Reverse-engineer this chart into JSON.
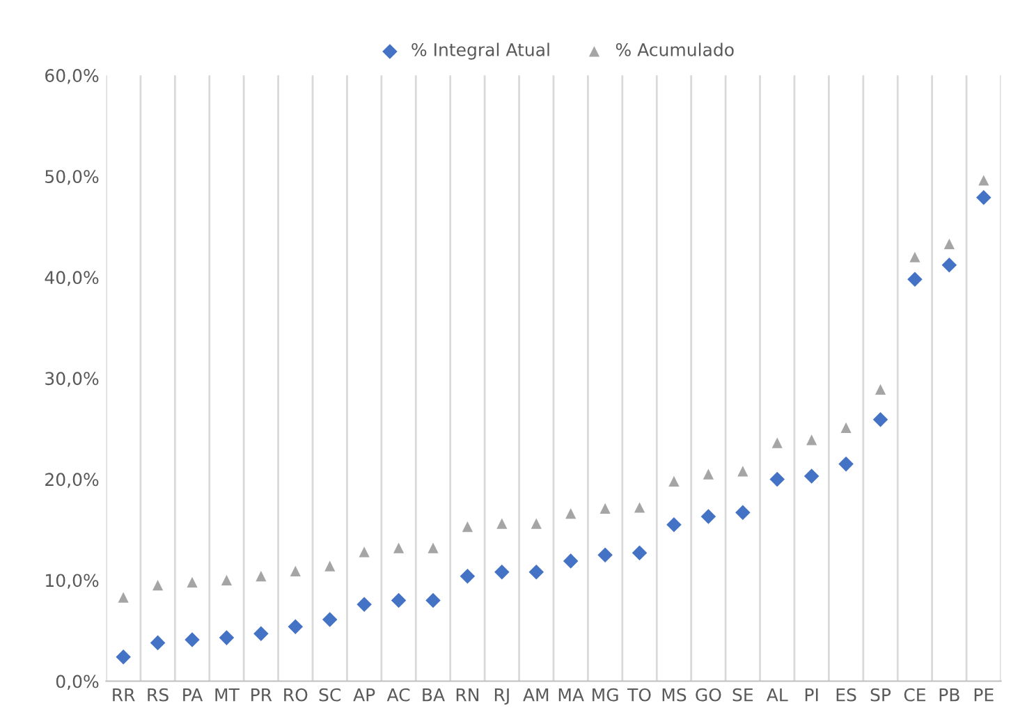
{
  "chart_data": {
    "type": "scatter",
    "categories": [
      "RR",
      "RS",
      "PA",
      "MT",
      "PR",
      "RO",
      "SC",
      "AP",
      "AC",
      "BA",
      "RN",
      "RJ",
      "AM",
      "MA",
      "MG",
      "TO",
      "MS",
      "GO",
      "SE",
      "AL",
      "PI",
      "ES",
      "SP",
      "CE",
      "PB",
      "PE"
    ],
    "series": [
      {
        "name": "% Integral Atual",
        "color": "#4472c4",
        "marker": "diamond",
        "values": [
          2.4,
          3.8,
          4.1,
          4.3,
          4.7,
          5.4,
          6.1,
          7.6,
          8.0,
          8.0,
          10.4,
          10.8,
          10.8,
          11.9,
          12.5,
          12.7,
          15.5,
          16.3,
          16.7,
          20.0,
          20.3,
          21.5,
          25.9,
          39.8,
          41.2,
          47.9
        ]
      },
      {
        "name": "% Acumulado",
        "color": "#a5a5a5",
        "marker": "triangle",
        "values": [
          8.3,
          9.5,
          9.8,
          10.0,
          10.4,
          10.9,
          11.4,
          12.8,
          13.2,
          13.2,
          15.3,
          15.6,
          15.6,
          16.6,
          17.1,
          17.2,
          19.8,
          20.5,
          20.8,
          23.6,
          23.9,
          25.1,
          28.9,
          42.0,
          43.3,
          49.6
        ]
      }
    ],
    "ylim": [
      0,
      60
    ],
    "yticks": [
      {
        "value": 0,
        "label": "0,0%"
      },
      {
        "value": 10,
        "label": "10,0%"
      },
      {
        "value": 20,
        "label": "20,0%"
      },
      {
        "value": 30,
        "label": "30,0%"
      },
      {
        "value": 40,
        "label": "40,0%"
      },
      {
        "value": 50,
        "label": "50,0%"
      },
      {
        "value": 60,
        "label": "60,0%"
      }
    ],
    "grid": "x",
    "legend": "top"
  }
}
